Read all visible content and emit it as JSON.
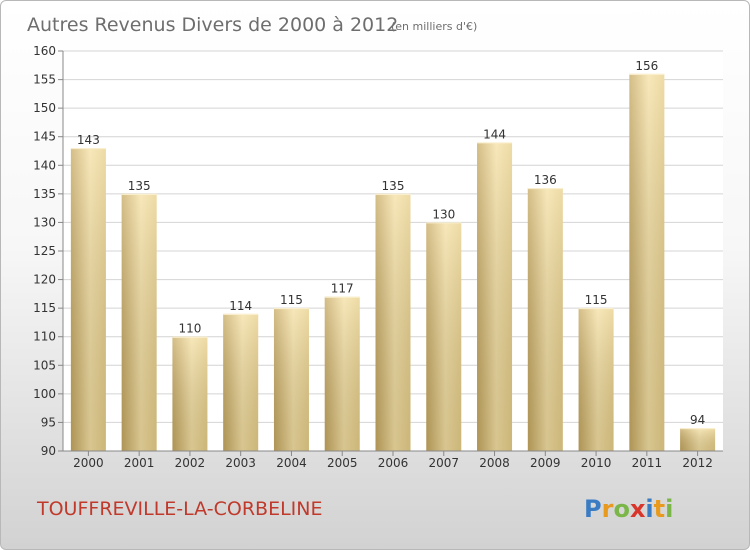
{
  "title": "Autres Revenus Divers de 2000 à 2012",
  "unit": "(en milliers d'€)",
  "commune": "TOUFFREVILLE-LA-CORBELINE",
  "logo": {
    "text": "Proxiti",
    "colors": [
      "#3a7cc4",
      "#e89a1f",
      "#7ab648",
      "#d9362b",
      "#3a7cc4",
      "#e89a1f",
      "#7ab648"
    ]
  },
  "colors": {
    "bar_light": "#f5e0a3",
    "bar_dark": "#c6a860",
    "commune": "#c0392b"
  },
  "chart_data": {
    "type": "bar",
    "categories": [
      "2000",
      "2001",
      "2002",
      "2003",
      "2004",
      "2005",
      "2006",
      "2007",
      "2008",
      "2009",
      "2010",
      "2011",
      "2012"
    ],
    "values": [
      143,
      135,
      110,
      114,
      115,
      117,
      135,
      130,
      144,
      136,
      115,
      156,
      94
    ],
    "ylim": [
      90,
      160
    ],
    "yticks": [
      90,
      95,
      100,
      105,
      110,
      115,
      120,
      125,
      130,
      135,
      140,
      145,
      150,
      155,
      160
    ],
    "grid": true,
    "xlabel": "",
    "ylabel": ""
  }
}
